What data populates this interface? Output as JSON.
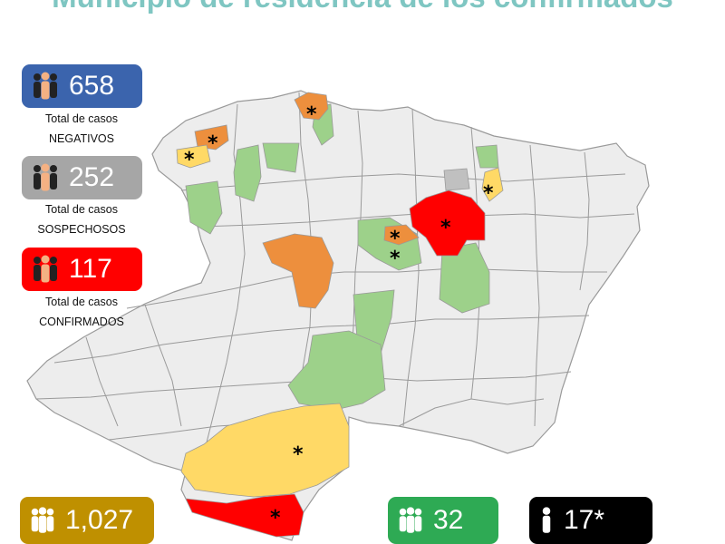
{
  "title": "Municipio de residencia de los confirmados",
  "badges": {
    "negativos": {
      "value": "658",
      "line1": "Total de casos",
      "line2": "NEGATIVOS",
      "color": "#3b64ad",
      "icon": "people-icon"
    },
    "sospechosos": {
      "value": "252",
      "line1": "Total de casos",
      "line2": "SOSPECHOSOS",
      "color": "#a6a6a6",
      "icon": "people-icon"
    },
    "confirmados": {
      "value": "117",
      "line1": "Total de casos",
      "line2": "CONFIRMADOS",
      "color": "#ff0000",
      "icon": "people-icon"
    },
    "gold": {
      "value": "1,027",
      "color": "#bf9000",
      "icon": "people-icon"
    },
    "green": {
      "value": "32",
      "color": "#2eaa54",
      "icon": "people-icon"
    },
    "black": {
      "value": "17*",
      "color": "#000000",
      "icon": "person-icon"
    }
  },
  "map": {
    "colors": {
      "base": "#ededed",
      "border": "#9a9a9a",
      "green": "#9dd18a",
      "orange": "#ed8f3d",
      "yellow": "#ffd966",
      "red": "#ff0000",
      "gray": "#c0c0c0"
    },
    "marker": "*"
  }
}
